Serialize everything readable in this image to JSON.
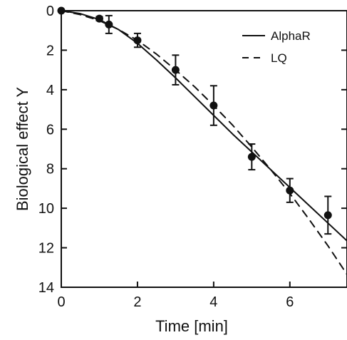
{
  "chart_data": {
    "type": "line",
    "title": "",
    "xlabel": "Time [min]",
    "ylabel": "Biological effect Y",
    "xlim": [
      0,
      7.5
    ],
    "ylim": [
      0,
      14
    ],
    "y_axis_inverted": true,
    "grid": false,
    "legend_position": "top-right",
    "x_ticks": [
      "0",
      "2",
      "4",
      "6"
    ],
    "y_ticks": [
      "0",
      "2",
      "4",
      "6",
      "8",
      "10",
      "12",
      "14"
    ],
    "legend": [
      "AlphaR",
      "LQ"
    ],
    "series": [
      {
        "name": "AlphaR",
        "style": "solid",
        "x": [
          0,
          0.5,
          1,
          1.5,
          2,
          2.5,
          3,
          3.5,
          4,
          4.5,
          5,
          5.5,
          6,
          6.5,
          7,
          7.5
        ],
        "y": [
          0,
          0.15,
          0.45,
          0.95,
          1.65,
          2.5,
          3.4,
          4.35,
          5.3,
          6.25,
          7.15,
          8.05,
          8.95,
          9.85,
          10.75,
          11.65
        ]
      },
      {
        "name": "LQ",
        "style": "dashed",
        "x": [
          0,
          0.5,
          1,
          1.5,
          2,
          2.5,
          3,
          3.5,
          4,
          4.5,
          5,
          5.5,
          6,
          6.5,
          7,
          7.5
        ],
        "y": [
          0,
          0.2,
          0.5,
          0.95,
          1.5,
          2.2,
          3.0,
          3.85,
          4.8,
          5.8,
          6.9,
          8.05,
          9.25,
          10.55,
          11.9,
          13.35
        ]
      },
      {
        "name": "",
        "style": "markers-errorbars",
        "x": [
          0,
          1,
          1.25,
          2,
          3,
          4,
          5,
          6,
          7
        ],
        "y": [
          0,
          0.4,
          0.7,
          1.5,
          3.0,
          4.8,
          7.4,
          9.1,
          10.35
        ],
        "err": [
          0,
          0.1,
          0.45,
          0.35,
          0.75,
          1.0,
          0.65,
          0.6,
          0.95
        ]
      }
    ],
    "colors": {
      "lines": "#111111",
      "markers": "#111111",
      "axes": "#111111"
    }
  }
}
